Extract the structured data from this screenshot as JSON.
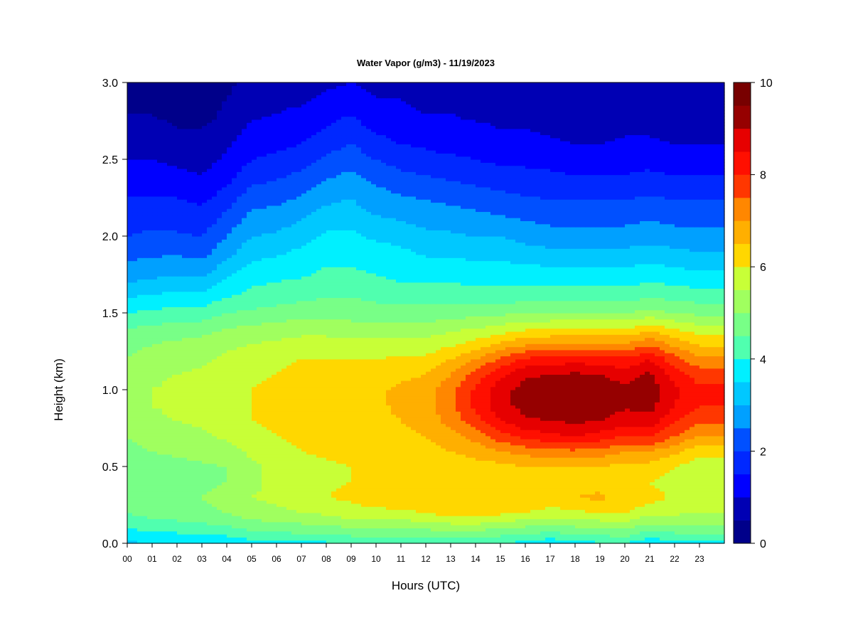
{
  "chart_data": {
    "type": "heatmap",
    "title": "Water Vapor (g/m3) - 11/19/2023",
    "xlabel": "Hours (UTC)",
    "ylabel": "Height (km)",
    "x_ticks": [
      "00",
      "01",
      "02",
      "03",
      "04",
      "05",
      "06",
      "07",
      "08",
      "09",
      "10",
      "11",
      "12",
      "13",
      "14",
      "15",
      "16",
      "17",
      "18",
      "19",
      "20",
      "21",
      "22",
      "23"
    ],
    "xlim": [
      0,
      24
    ],
    "y_ticks": [
      "0.0",
      "0.5",
      "1.0",
      "1.5",
      "2.0",
      "2.5",
      "3.0"
    ],
    "ylim": [
      0,
      3
    ],
    "colorbar": {
      "ticks": [
        "0",
        "2",
        "4",
        "6",
        "8",
        "10"
      ],
      "range": [
        0,
        10
      ],
      "levels": 20,
      "colors": [
        "#00008a",
        "#0000b4",
        "#0000dc",
        "#0000ff",
        "#0028ff",
        "#0050ff",
        "#0078ff",
        "#00a0ff",
        "#00c8ff",
        "#00f0ff",
        "#28ffd7",
        "#50ffaf",
        "#78ff87",
        "#a0ff5f",
        "#c8ff37",
        "#f0ff0f",
        "#ffd700",
        "#ffaf00",
        "#ff8700",
        "#ff5f00",
        "#ff3700",
        "#ff0f00",
        "#e60000",
        "#be0000",
        "#960000",
        "#780000"
      ]
    },
    "heights_km": [
      0.0,
      0.1,
      0.2,
      0.3,
      0.4,
      0.5,
      0.6,
      0.7,
      0.8,
      0.9,
      1.0,
      1.1,
      1.2,
      1.3,
      1.4,
      1.5,
      1.6,
      1.7,
      1.8,
      1.9,
      2.0,
      2.1,
      2.2,
      2.3,
      2.4,
      2.5,
      2.6,
      2.7,
      2.8,
      2.9,
      3.0
    ],
    "hours_utc": [
      0,
      1,
      2,
      3,
      4,
      5,
      6,
      7,
      8,
      9,
      10,
      11,
      12,
      13,
      14,
      15,
      16,
      17,
      18,
      19,
      20,
      21,
      22,
      23,
      24
    ],
    "values_g_m3": [
      [
        3.4,
        3.5,
        3.5,
        3.6,
        3.6,
        3.8,
        3.8,
        3.9,
        3.9,
        4.0,
        4.0,
        4.0,
        4.0,
        4.0,
        4.1,
        4.0,
        3.8,
        3.6,
        3.8,
        3.9,
        4.0,
        3.6,
        3.8,
        3.8,
        3.8
      ],
      [
        4.0,
        4.2,
        4.2,
        4.3,
        4.4,
        4.6,
        4.7,
        4.8,
        4.8,
        5.0,
        5.0,
        5.0,
        5.1,
        5.2,
        5.2,
        5.0,
        4.9,
        4.8,
        4.9,
        5.0,
        5.1,
        4.7,
        4.8,
        4.8,
        4.8
      ],
      [
        4.5,
        4.7,
        4.8,
        4.9,
        5.0,
        5.3,
        5.4,
        5.5,
        5.6,
        5.8,
        5.9,
        5.9,
        6.0,
        6.2,
        6.3,
        6.1,
        6.0,
        5.8,
        5.9,
        6.0,
        6.0,
        5.7,
        5.6,
        5.5,
        5.5
      ],
      [
        4.6,
        4.8,
        4.9,
        5.0,
        5.1,
        5.5,
        5.6,
        5.8,
        6.0,
        6.1,
        6.2,
        6.3,
        6.4,
        6.5,
        6.5,
        6.5,
        6.5,
        6.3,
        6.5,
        6.6,
        6.3,
        6.2,
        5.9,
        5.7,
        5.7
      ],
      [
        4.5,
        4.7,
        4.8,
        4.9,
        5.0,
        5.4,
        5.6,
        5.8,
        5.9,
        6.0,
        6.0,
        6.0,
        6.0,
        6.1,
        6.2,
        6.2,
        6.3,
        6.2,
        6.3,
        6.3,
        6.0,
        6.0,
        5.8,
        5.5,
        5.5
      ],
      [
        4.6,
        4.8,
        4.8,
        4.9,
        5.0,
        5.4,
        5.6,
        5.8,
        5.9,
        6.0,
        6.0,
        6.0,
        6.1,
        6.2,
        6.3,
        6.3,
        6.5,
        6.5,
        6.5,
        6.5,
        6.3,
        6.3,
        6.0,
        5.7,
        5.7
      ],
      [
        4.8,
        5.0,
        5.1,
        5.2,
        5.3,
        5.6,
        5.8,
        6.0,
        6.1,
        6.2,
        6.2,
        6.2,
        6.3,
        6.5,
        6.7,
        7.0,
        7.2,
        7.3,
        7.4,
        7.3,
        7.0,
        7.0,
        6.6,
        6.2,
        6.2
      ],
      [
        5.0,
        5.2,
        5.3,
        5.4,
        5.6,
        5.8,
        6.0,
        6.1,
        6.2,
        6.3,
        6.3,
        6.4,
        6.5,
        6.8,
        7.2,
        7.8,
        8.2,
        8.4,
        8.5,
        8.3,
        8.0,
        8.1,
        7.5,
        7.0,
        7.0
      ],
      [
        5.2,
        5.4,
        5.5,
        5.6,
        5.8,
        6.0,
        6.1,
        6.2,
        6.3,
        6.3,
        6.4,
        6.5,
        6.7,
        7.2,
        7.8,
        8.5,
        8.9,
        9.0,
        9.1,
        9.0,
        8.7,
        8.8,
        8.1,
        7.6,
        7.6
      ],
      [
        5.3,
        5.5,
        5.6,
        5.7,
        5.9,
        6.0,
        6.1,
        6.2,
        6.3,
        6.3,
        6.4,
        6.6,
        6.8,
        7.4,
        8.1,
        8.8,
        9.2,
        9.3,
        9.4,
        9.3,
        9.1,
        9.2,
        8.5,
        8.0,
        8.0
      ],
      [
        5.3,
        5.5,
        5.6,
        5.7,
        5.9,
        6.0,
        6.1,
        6.2,
        6.3,
        6.3,
        6.4,
        6.6,
        6.8,
        7.4,
        8.1,
        8.8,
        9.2,
        9.3,
        9.4,
        9.3,
        9.1,
        9.3,
        8.6,
        8.1,
        8.1
      ],
      [
        5.2,
        5.4,
        5.5,
        5.6,
        5.8,
        5.9,
        6.0,
        6.1,
        6.2,
        6.2,
        6.3,
        6.4,
        6.5,
        7.0,
        7.7,
        8.4,
        8.9,
        9.0,
        9.1,
        9.0,
        8.8,
        9.1,
        8.3,
        7.8,
        7.8
      ],
      [
        5.0,
        5.2,
        5.3,
        5.4,
        5.6,
        5.8,
        5.9,
        6.0,
        6.0,
        6.0,
        6.0,
        6.1,
        6.1,
        6.5,
        7.0,
        7.6,
        8.1,
        8.2,
        8.3,
        8.2,
        8.1,
        8.5,
        7.7,
        7.1,
        7.1
      ],
      [
        4.8,
        5.0,
        5.1,
        5.2,
        5.4,
        5.5,
        5.6,
        5.7,
        5.7,
        5.7,
        5.7,
        5.7,
        5.7,
        5.9,
        6.2,
        6.6,
        6.9,
        7.0,
        7.1,
        7.1,
        7.0,
        7.4,
        6.8,
        6.4,
        6.4
      ],
      [
        4.5,
        4.6,
        4.7,
        4.8,
        5.0,
        5.1,
        5.2,
        5.3,
        5.3,
        5.2,
        5.2,
        5.2,
        5.2,
        5.4,
        5.5,
        5.7,
        5.9,
        6.0,
        6.0,
        6.0,
        6.0,
        6.3,
        6.0,
        5.7,
        5.7
      ],
      [
        4.0,
        4.1,
        4.2,
        4.2,
        4.5,
        4.6,
        4.7,
        4.8,
        4.8,
        4.8,
        4.7,
        4.7,
        4.7,
        4.8,
        4.8,
        4.9,
        5.0,
        5.0,
        5.0,
        5.0,
        5.0,
        5.2,
        5.0,
        4.9,
        4.9
      ],
      [
        3.5,
        3.6,
        3.7,
        3.7,
        4.0,
        4.2,
        4.3,
        4.4,
        4.5,
        4.5,
        4.4,
        4.3,
        4.3,
        4.3,
        4.3,
        4.3,
        4.3,
        4.3,
        4.3,
        4.3,
        4.3,
        4.5,
        4.4,
        4.3,
        4.3
      ],
      [
        3.0,
        3.1,
        3.2,
        3.2,
        3.6,
        3.9,
        4.0,
        4.1,
        4.2,
        4.2,
        4.1,
        4.0,
        4.0,
        4.0,
        3.9,
        3.9,
        3.9,
        3.9,
        3.9,
        3.9,
        3.9,
        4.0,
        3.9,
        3.8,
        3.8
      ],
      [
        2.6,
        2.7,
        2.8,
        2.7,
        3.2,
        3.6,
        3.7,
        3.8,
        4.0,
        4.0,
        3.9,
        3.8,
        3.7,
        3.7,
        3.6,
        3.6,
        3.6,
        3.5,
        3.5,
        3.5,
        3.5,
        3.6,
        3.5,
        3.4,
        3.4
      ],
      [
        2.3,
        2.4,
        2.4,
        2.3,
        2.8,
        3.3,
        3.4,
        3.6,
        3.8,
        3.8,
        3.7,
        3.6,
        3.4,
        3.4,
        3.3,
        3.3,
        3.2,
        3.1,
        3.1,
        3.1,
        3.1,
        3.2,
        3.1,
        3.0,
        3.0
      ],
      [
        2.0,
        2.1,
        2.1,
        2.0,
        2.5,
        3.0,
        3.1,
        3.3,
        3.6,
        3.6,
        3.4,
        3.3,
        3.1,
        3.1,
        3.0,
        3.0,
        2.8,
        2.7,
        2.7,
        2.7,
        2.7,
        2.8,
        2.7,
        2.7,
        2.7
      ],
      [
        1.8,
        1.9,
        1.8,
        1.7,
        2.2,
        2.7,
        2.8,
        3.0,
        3.3,
        3.4,
        3.1,
        3.0,
        2.9,
        2.8,
        2.7,
        2.6,
        2.5,
        2.4,
        2.4,
        2.4,
        2.4,
        2.5,
        2.4,
        2.4,
        2.4
      ],
      [
        1.6,
        1.7,
        1.6,
        1.5,
        1.9,
        2.4,
        2.5,
        2.7,
        3.0,
        3.1,
        2.8,
        2.7,
        2.6,
        2.5,
        2.4,
        2.3,
        2.2,
        2.1,
        2.1,
        2.1,
        2.1,
        2.2,
        2.1,
        2.1,
        2.1
      ],
      [
        1.4,
        1.4,
        1.4,
        1.2,
        1.6,
        2.1,
        2.2,
        2.4,
        2.7,
        2.9,
        2.6,
        2.4,
        2.3,
        2.2,
        2.1,
        2.0,
        1.9,
        1.8,
        1.8,
        1.8,
        1.8,
        1.9,
        1.8,
        1.8,
        1.8
      ],
      [
        1.2,
        1.2,
        1.1,
        1.0,
        1.3,
        1.8,
        1.9,
        2.1,
        2.4,
        2.6,
        2.3,
        2.1,
        2.0,
        1.9,
        1.8,
        1.7,
        1.6,
        1.6,
        1.5,
        1.5,
        1.5,
        1.6,
        1.5,
        1.5,
        1.5
      ],
      [
        1.0,
        1.0,
        0.9,
        0.8,
        1.1,
        1.5,
        1.6,
        1.8,
        2.1,
        2.3,
        2.0,
        1.8,
        1.7,
        1.6,
        1.5,
        1.4,
        1.4,
        1.3,
        1.2,
        1.2,
        1.3,
        1.3,
        1.2,
        1.2,
        1.2
      ],
      [
        0.8,
        0.8,
        0.7,
        0.6,
        0.9,
        1.3,
        1.4,
        1.5,
        1.8,
        2.0,
        1.7,
        1.5,
        1.4,
        1.3,
        1.3,
        1.2,
        1.2,
        1.1,
        1.0,
        1.0,
        1.1,
        1.1,
        1.0,
        1.0,
        1.0
      ],
      [
        0.6,
        0.6,
        0.5,
        0.5,
        0.7,
        1.1,
        1.2,
        1.3,
        1.5,
        1.7,
        1.4,
        1.3,
        1.2,
        1.1,
        1.1,
        1.0,
        1.0,
        0.9,
        0.8,
        0.8,
        0.9,
        0.9,
        0.8,
        0.8,
        0.8
      ],
      [
        0.5,
        0.5,
        0.4,
        0.3,
        0.6,
        0.9,
        1.0,
        1.1,
        1.3,
        1.5,
        1.2,
        1.1,
        1.0,
        1.0,
        0.9,
        0.9,
        0.8,
        0.7,
        0.7,
        0.7,
        0.8,
        0.8,
        0.7,
        0.7,
        0.7
      ],
      [
        0.4,
        0.4,
        0.3,
        0.3,
        0.5,
        0.8,
        0.9,
        0.9,
        1.1,
        1.2,
        1.0,
        1.0,
        0.9,
        0.9,
        0.8,
        0.8,
        0.7,
        0.6,
        0.6,
        0.6,
        0.7,
        0.7,
        0.6,
        0.6,
        0.6
      ],
      [
        0.3,
        0.3,
        0.3,
        0.2,
        0.4,
        0.7,
        0.8,
        0.8,
        0.9,
        1.0,
        0.9,
        0.9,
        0.8,
        0.8,
        0.7,
        0.7,
        0.6,
        0.5,
        0.5,
        0.5,
        0.6,
        0.6,
        0.5,
        0.5,
        0.5
      ]
    ]
  }
}
